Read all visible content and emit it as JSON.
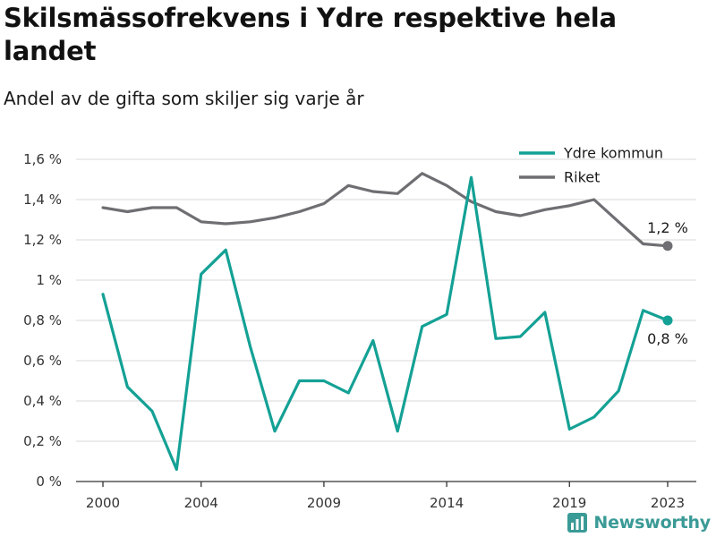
{
  "title": "Skilsmässofrekvens i Ydre respektive hela landet",
  "subtitle": "Andel av de gifta som skiljer sig varje år",
  "brand": "Newsworthy",
  "colors": {
    "ydre": "#14a195",
    "riket": "#6f6e72",
    "grid": "#d9d9d9",
    "axis": "#333333"
  },
  "chart_data": {
    "type": "line",
    "x": [
      2000,
      2001,
      2002,
      2003,
      2004,
      2005,
      2006,
      2007,
      2008,
      2009,
      2010,
      2011,
      2012,
      2013,
      2014,
      2015,
      2016,
      2017,
      2018,
      2019,
      2020,
      2021,
      2022,
      2023
    ],
    "x_ticks": [
      2000,
      2004,
      2009,
      2014,
      2019,
      2023
    ],
    "y_ticks": [
      0,
      0.2,
      0.4,
      0.6,
      0.8,
      1.0,
      1.2,
      1.4,
      1.6
    ],
    "y_tick_labels": [
      "0 %",
      "0,2 %",
      "0,4 %",
      "0,6 %",
      "0,8 %",
      "1 %",
      "1,2 %",
      "1,4 %",
      "1,6 %"
    ],
    "ylim": [
      0,
      1.6
    ],
    "xlim": [
      2000,
      2023
    ],
    "grid": true,
    "legend_position": "top-right",
    "series": [
      {
        "name": "Ydre kommun",
        "color": "#14a195",
        "values": [
          0.93,
          0.47,
          0.35,
          0.06,
          1.03,
          1.15,
          0.67,
          0.25,
          0.5,
          0.5,
          0.44,
          0.7,
          0.25,
          0.77,
          0.83,
          1.51,
          0.71,
          0.72,
          0.84,
          0.26,
          0.32,
          0.45,
          0.85,
          0.8
        ],
        "end_label": "0,8 %"
      },
      {
        "name": "Riket",
        "color": "#6f6e72",
        "values": [
          1.36,
          1.34,
          1.36,
          1.36,
          1.29,
          1.28,
          1.29,
          1.31,
          1.34,
          1.38,
          1.47,
          1.44,
          1.43,
          1.53,
          1.47,
          1.39,
          1.34,
          1.32,
          1.35,
          1.37,
          1.4,
          1.29,
          1.18,
          1.17
        ],
        "end_label": "1,2 %"
      }
    ]
  }
}
